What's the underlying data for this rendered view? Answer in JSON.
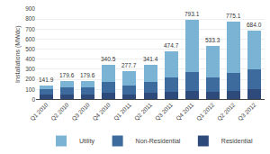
{
  "chart_data": {
    "type": "bar",
    "stacked": true,
    "categories": [
      "Q1 2010",
      "Q2 2010",
      "Q3 2010",
      "Q4 2010",
      "Q1 2011",
      "Q2 2011",
      "Q3 2011",
      "Q4 2011",
      "Q1 2012",
      "Q2 2012",
      "Q3 2012"
    ],
    "series": [
      {
        "name": "Residential",
        "color": "#2e4a7a",
        "values": [
          48,
          52,
          48,
          65,
          52,
          62,
          72,
          88,
          72,
          88,
          100
        ]
      },
      {
        "name": "Non-Residential",
        "color": "#3d6b9e",
        "values": [
          50,
          65,
          68,
          110,
          82,
          110,
          148,
          185,
          148,
          178,
          195
        ]
      },
      {
        "name": "Utility",
        "color": "#7ab3d4",
        "values": [
          43.9,
          62.6,
          63.6,
          165.5,
          143.7,
          169.4,
          254.7,
          520.1,
          313.3,
          509.1,
          389
        ]
      }
    ],
    "totals": [
      141.9,
      179.6,
      179.6,
      340.5,
      277.7,
      341.4,
      474.7,
      793.1,
      533.3,
      775.1,
      684.0
    ],
    "total_labels": [
      "141.9",
      "179.6",
      "179.6",
      "340.5",
      "277.7",
      "341.4",
      "474.7",
      "793.1",
      "533.3",
      "775.1",
      "684.0"
    ],
    "ylabel": "Installations (MWdc)",
    "ylim": [
      0,
      900
    ],
    "yticks": [
      0,
      100,
      200,
      300,
      400,
      500,
      600,
      700,
      800,
      900
    ],
    "grid": true,
    "legend": "bottom"
  }
}
